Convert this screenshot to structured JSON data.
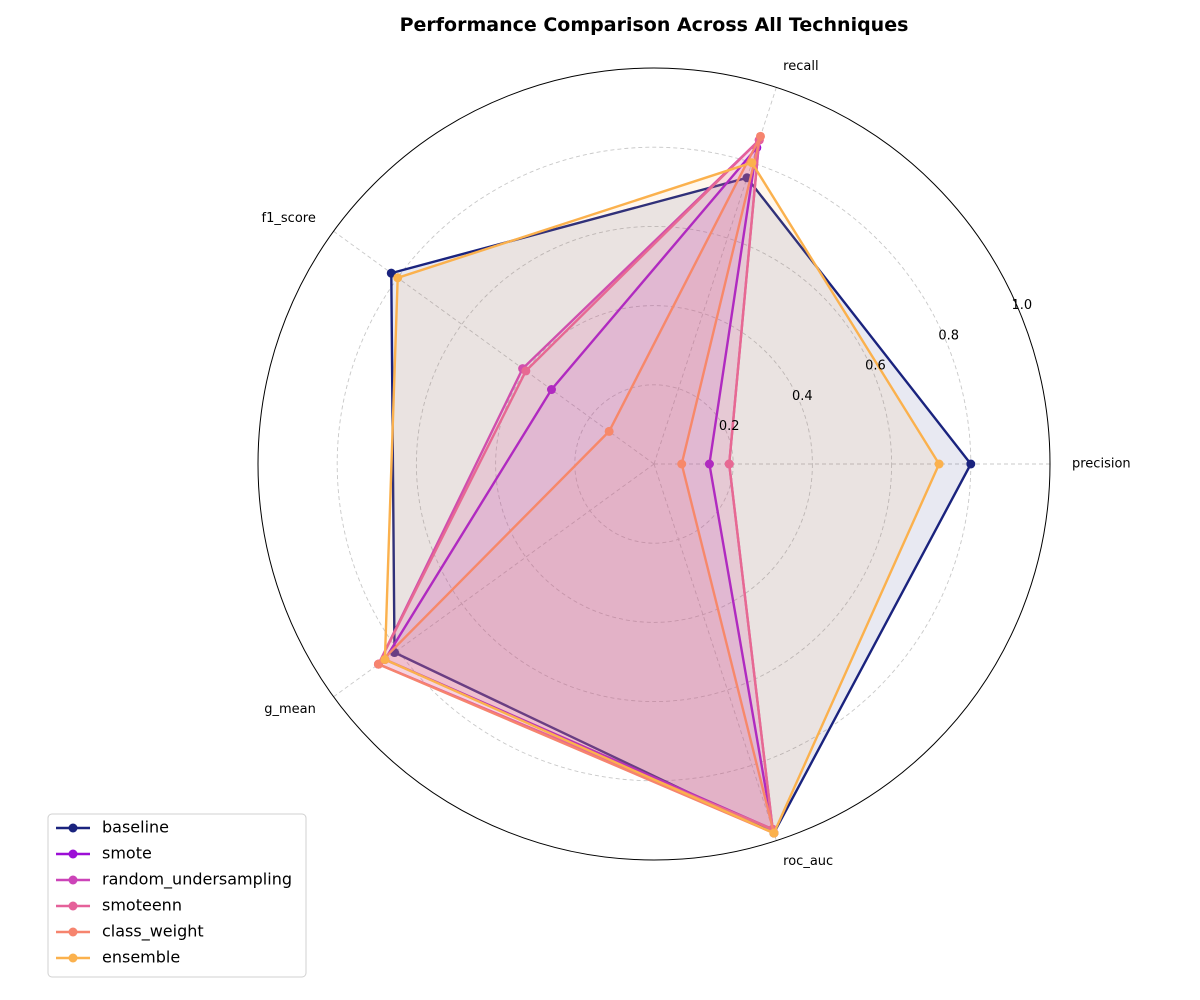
{
  "chart_data": {
    "type": "radar",
    "title": "Performance Comparison Across All Techniques",
    "axes": [
      "precision",
      "recall",
      "f1_score",
      "g_mean",
      "roc_auc"
    ],
    "rlim": [
      0,
      1.0
    ],
    "rticks": [
      0.2,
      0.4,
      0.6,
      0.8,
      1.0
    ],
    "rtick_labels": [
      "0.2",
      "0.4",
      "0.6",
      "0.8",
      "1.0"
    ],
    "grid": true,
    "legend_position": "lower-left",
    "series": [
      {
        "name": "baseline",
        "color": "#1a237e",
        "values": [
          0.8,
          0.76,
          0.82,
          0.81,
          0.98
        ]
      },
      {
        "name": "smote",
        "color": "#9c0ed6",
        "values": [
          0.14,
          0.84,
          0.32,
          0.84,
          0.97
        ]
      },
      {
        "name": "random_undersampling",
        "color": "#cc44b8",
        "values": [
          0.19,
          0.86,
          0.41,
          0.86,
          0.97
        ]
      },
      {
        "name": "smoteenn",
        "color": "#e5619a",
        "values": [
          0.19,
          0.86,
          0.4,
          0.86,
          0.97
        ]
      },
      {
        "name": "class_weight",
        "color": "#f6846e",
        "values": [
          0.07,
          0.87,
          0.14,
          0.86,
          0.98
        ]
      },
      {
        "name": "ensemble",
        "color": "#fbb14d",
        "values": [
          0.72,
          0.8,
          0.8,
          0.84,
          0.98
        ]
      }
    ]
  }
}
